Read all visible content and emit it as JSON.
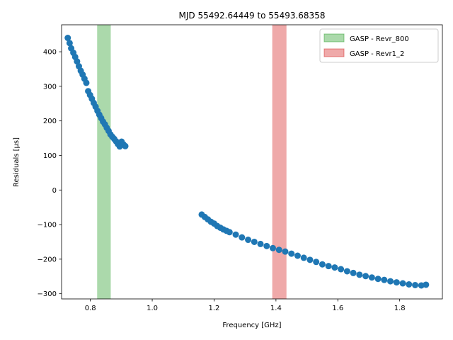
{
  "chart_data": {
    "type": "scatter",
    "title": "MJD 55492.64449 to 55493.68358",
    "xlabel": "Frequency [GHz]",
    "ylabel": "Residuals [μs]",
    "xlim": [
      0.707,
      1.938
    ],
    "ylim": [
      -315,
      478
    ],
    "xticks": [
      0.8,
      1.0,
      1.2,
      1.4,
      1.6,
      1.8
    ],
    "xtick_labels": [
      "0.8",
      "1.0",
      "1.2",
      "1.4",
      "1.6",
      "1.8"
    ],
    "yticks": [
      -300,
      -200,
      -100,
      0,
      100,
      200,
      300,
      400
    ],
    "ytick_labels": [
      "−300",
      "−200",
      "−100",
      "0",
      "100",
      "200",
      "300",
      "400"
    ],
    "grid": false,
    "legend_position": "top-right",
    "bands": [
      {
        "name": "GASP - Revr_800",
        "x_range": [
          0.822,
          0.866
        ],
        "color": "#2ca02c"
      },
      {
        "name": "GASP - Revr1_2",
        "x_range": [
          1.388,
          1.434
        ],
        "color": "#d62728"
      }
    ],
    "series": [
      {
        "color": "#1f77b4",
        "x": [
          0.727,
          0.733,
          0.738,
          0.745,
          0.751,
          0.757,
          0.763,
          0.769,
          0.775,
          0.781,
          0.787,
          0.793,
          0.799,
          0.805,
          0.811,
          0.817,
          0.823,
          0.829,
          0.835,
          0.841,
          0.847,
          0.853,
          0.859,
          0.865,
          0.871,
          0.877,
          0.883,
          0.889,
          0.895,
          0.901,
          0.907,
          0.913,
          1.16,
          1.17,
          1.18,
          1.19,
          1.2,
          1.21,
          1.22,
          1.23,
          1.24,
          1.25,
          1.27,
          1.29,
          1.31,
          1.33,
          1.35,
          1.37,
          1.39,
          1.41,
          1.43,
          1.45,
          1.47,
          1.49,
          1.51,
          1.53,
          1.55,
          1.57,
          1.59,
          1.61,
          1.63,
          1.65,
          1.67,
          1.69,
          1.71,
          1.73,
          1.75,
          1.77,
          1.79,
          1.81,
          1.83,
          1.85,
          1.87,
          1.885
        ],
        "y": [
          440,
          425,
          410,
          397,
          385,
          372,
          358,
          345,
          334,
          322,
          310,
          286,
          275,
          264,
          252,
          241,
          229,
          218,
          208,
          198,
          190,
          180,
          171,
          161,
          154,
          148,
          141,
          133,
          126,
          140,
          132,
          127,
          -71,
          -78,
          -85,
          -92,
          -97,
          -104,
          -109,
          -114,
          -118,
          -122,
          -129,
          -137,
          -144,
          -150,
          -156,
          -162,
          -168,
          -173,
          -178,
          -184,
          -190,
          -196,
          -202,
          -208,
          -215,
          -220,
          -224,
          -229,
          -235,
          -240,
          -245,
          -249,
          -253,
          -257,
          -260,
          -264,
          -267,
          -270,
          -273,
          -275,
          -276,
          -274
        ]
      }
    ]
  }
}
